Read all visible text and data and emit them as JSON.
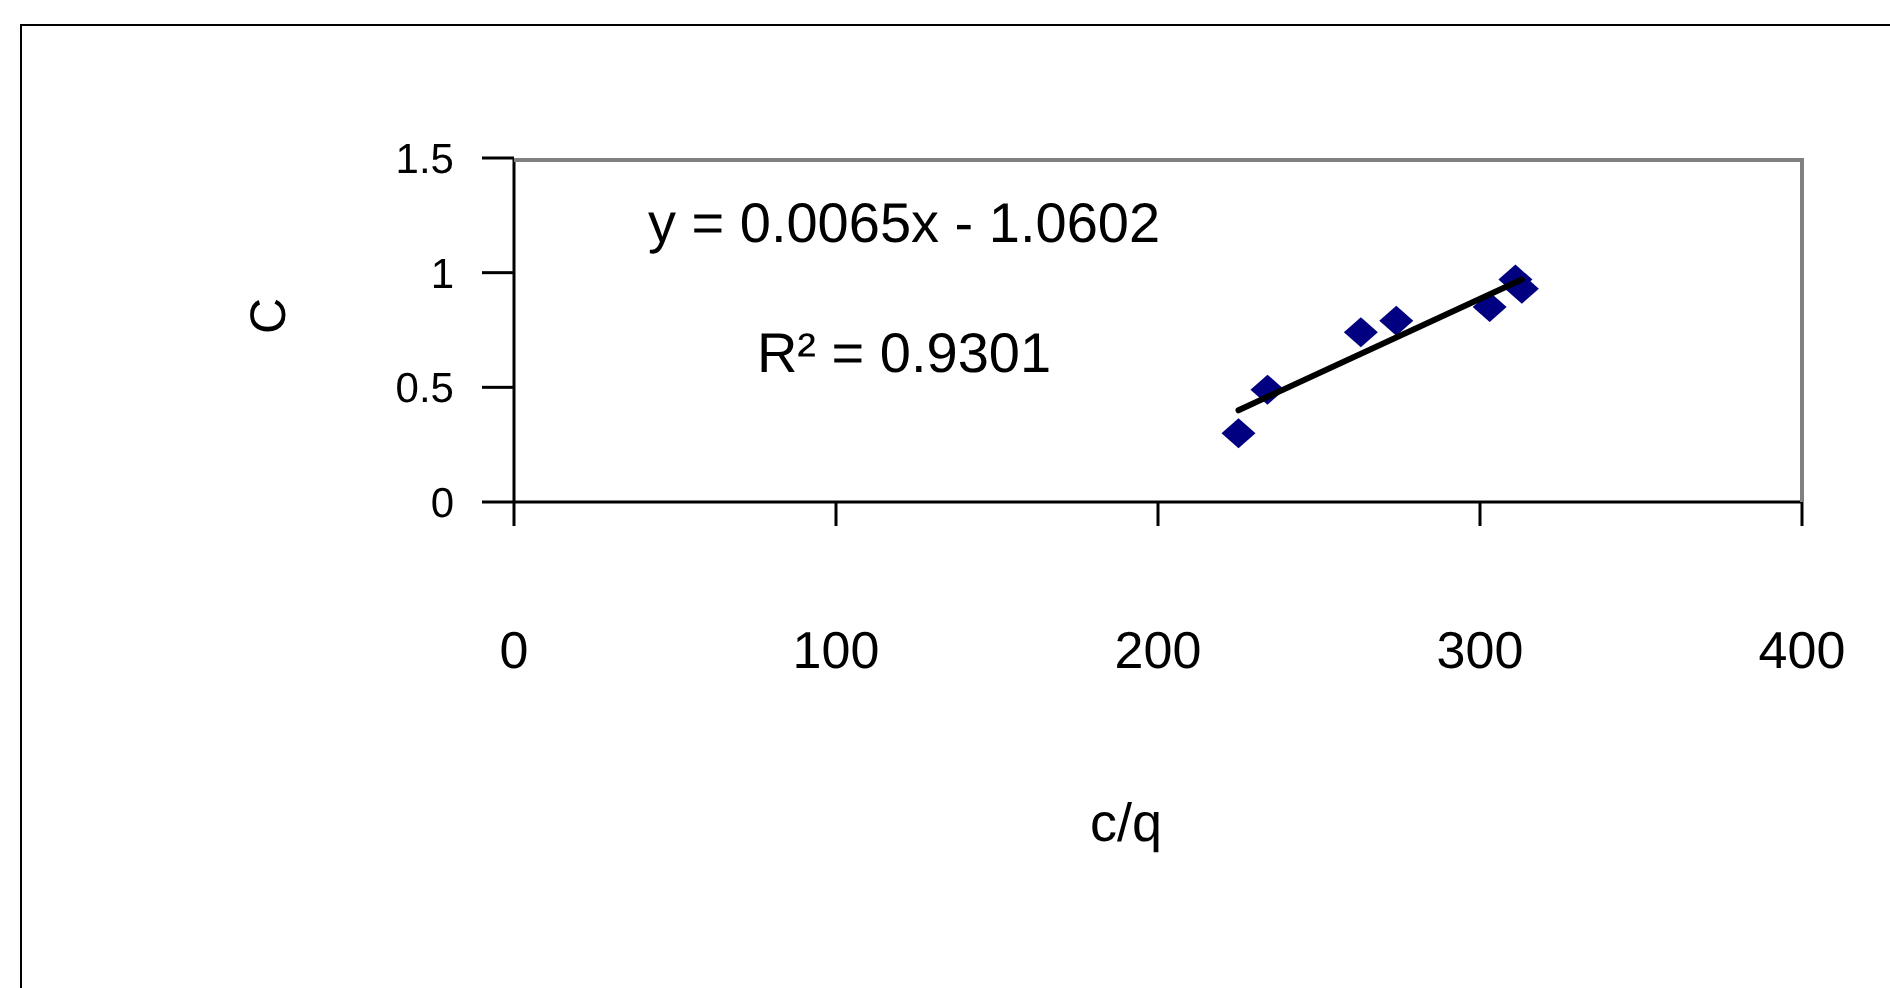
{
  "chart_data": {
    "type": "scatter",
    "xlabel": "c/q",
    "ylabel": "C",
    "annotations": [
      "y = 0.0065x - 1.0602",
      "R² = 0.9301"
    ],
    "xlim": [
      0,
      400
    ],
    "xticks": [
      0,
      100,
      200,
      300,
      400
    ],
    "ylim": [
      0,
      1.5
    ],
    "yticks": [
      0,
      0.5,
      1,
      1.5
    ],
    "marker": "diamond",
    "series": [
      {
        "type": "scatter",
        "color": "#000080",
        "x": [
          225,
          234,
          263,
          274,
          303,
          313,
          311
        ],
        "values": [
          0.3,
          0.49,
          0.74,
          0.79,
          0.85,
          0.93,
          0.97
        ]
      },
      {
        "type": "line",
        "color": "#000000",
        "marker": "none",
        "x": [
          225,
          313
        ],
        "values": [
          0.4,
          0.97
        ]
      }
    ]
  }
}
